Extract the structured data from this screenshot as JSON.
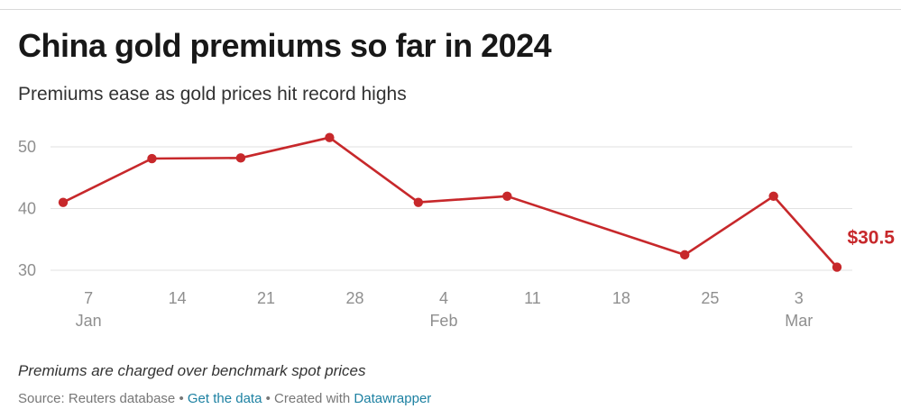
{
  "header": {
    "title": "China gold premiums so far in 2024",
    "subtitle": "Premiums ease as gold prices hit record highs"
  },
  "footer": {
    "note": "Premiums are charged over benchmark spot prices",
    "source_prefix": "Source: Reuters database",
    "separator": " • ",
    "get_data_link": "Get the data",
    "created_with": "Created with",
    "datawrapper_link": "Datawrapper"
  },
  "colors": {
    "line": "#c7282b",
    "grid": "#e2e2e2",
    "tick": "#8f8f8f"
  },
  "chart_data": {
    "type": "line",
    "title": "China gold premiums so far in 2024",
    "subtitle": "Premiums ease as gold prices hit record highs",
    "xlabel": "",
    "ylabel": "",
    "x_range": [
      "2024-01-05",
      "2024-03-06"
    ],
    "ylim": [
      30,
      50
    ],
    "y_ticks": [
      50,
      40,
      30
    ],
    "x_ticks": [
      {
        "date": "2024-01-07",
        "day": "7",
        "month": "Jan"
      },
      {
        "date": "2024-01-14",
        "day": "14",
        "month": ""
      },
      {
        "date": "2024-01-21",
        "day": "21",
        "month": ""
      },
      {
        "date": "2024-01-28",
        "day": "28",
        "month": ""
      },
      {
        "date": "2024-02-04",
        "day": "4",
        "month": "Feb"
      },
      {
        "date": "2024-02-11",
        "day": "11",
        "month": ""
      },
      {
        "date": "2024-02-18",
        "day": "18",
        "month": ""
      },
      {
        "date": "2024-02-25",
        "day": "25",
        "month": ""
      },
      {
        "date": "2024-03-03",
        "day": "3",
        "month": "Mar"
      }
    ],
    "grid": true,
    "series": [
      {
        "values": [
          {
            "x": "2024-01-05",
            "y": 41.0
          },
          {
            "x": "2024-01-12",
            "y": 48.1
          },
          {
            "x": "2024-01-19",
            "y": 48.2
          },
          {
            "x": "2024-01-26",
            "y": 51.5
          },
          {
            "x": "2024-02-02",
            "y": 41.0
          },
          {
            "x": "2024-02-09",
            "y": 42.0
          },
          {
            "x": "2024-02-23",
            "y": 32.5
          },
          {
            "x": "2024-03-01",
            "y": 42.0
          },
          {
            "x": "2024-03-06",
            "y": 30.5
          }
        ],
        "end_label": "$30.5"
      }
    ]
  }
}
